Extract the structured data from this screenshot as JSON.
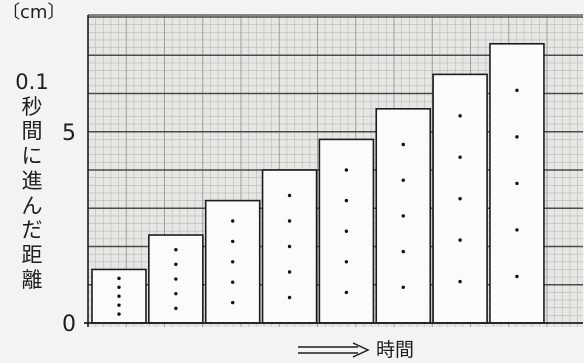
{
  "chart_data": {
    "type": "bar",
    "values": [
      1.4,
      2.3,
      3.2,
      4.0,
      4.8,
      5.6,
      6.5,
      7.3
    ],
    "yunit": "〔cm〕",
    "ylabel": "0.1秒間に進んだ距離",
    "xlabel": "時間",
    "ylim": [
      0,
      8
    ],
    "y_ticks": [
      0,
      5
    ],
    "grid": true,
    "dots_per_bar": 5
  },
  "colors": {
    "plot_background": "#e6e6e3",
    "grid_minor": "#b9b9b6",
    "grid_major_vertical": "#9a9a97",
    "grid_major": "#4a4a48",
    "bar_fill": "#fbfbfa",
    "bar_stroke": "#1c1c1c",
    "dot": "#111111",
    "axis": "#1c1c1c",
    "text": "#1e1e1e"
  }
}
